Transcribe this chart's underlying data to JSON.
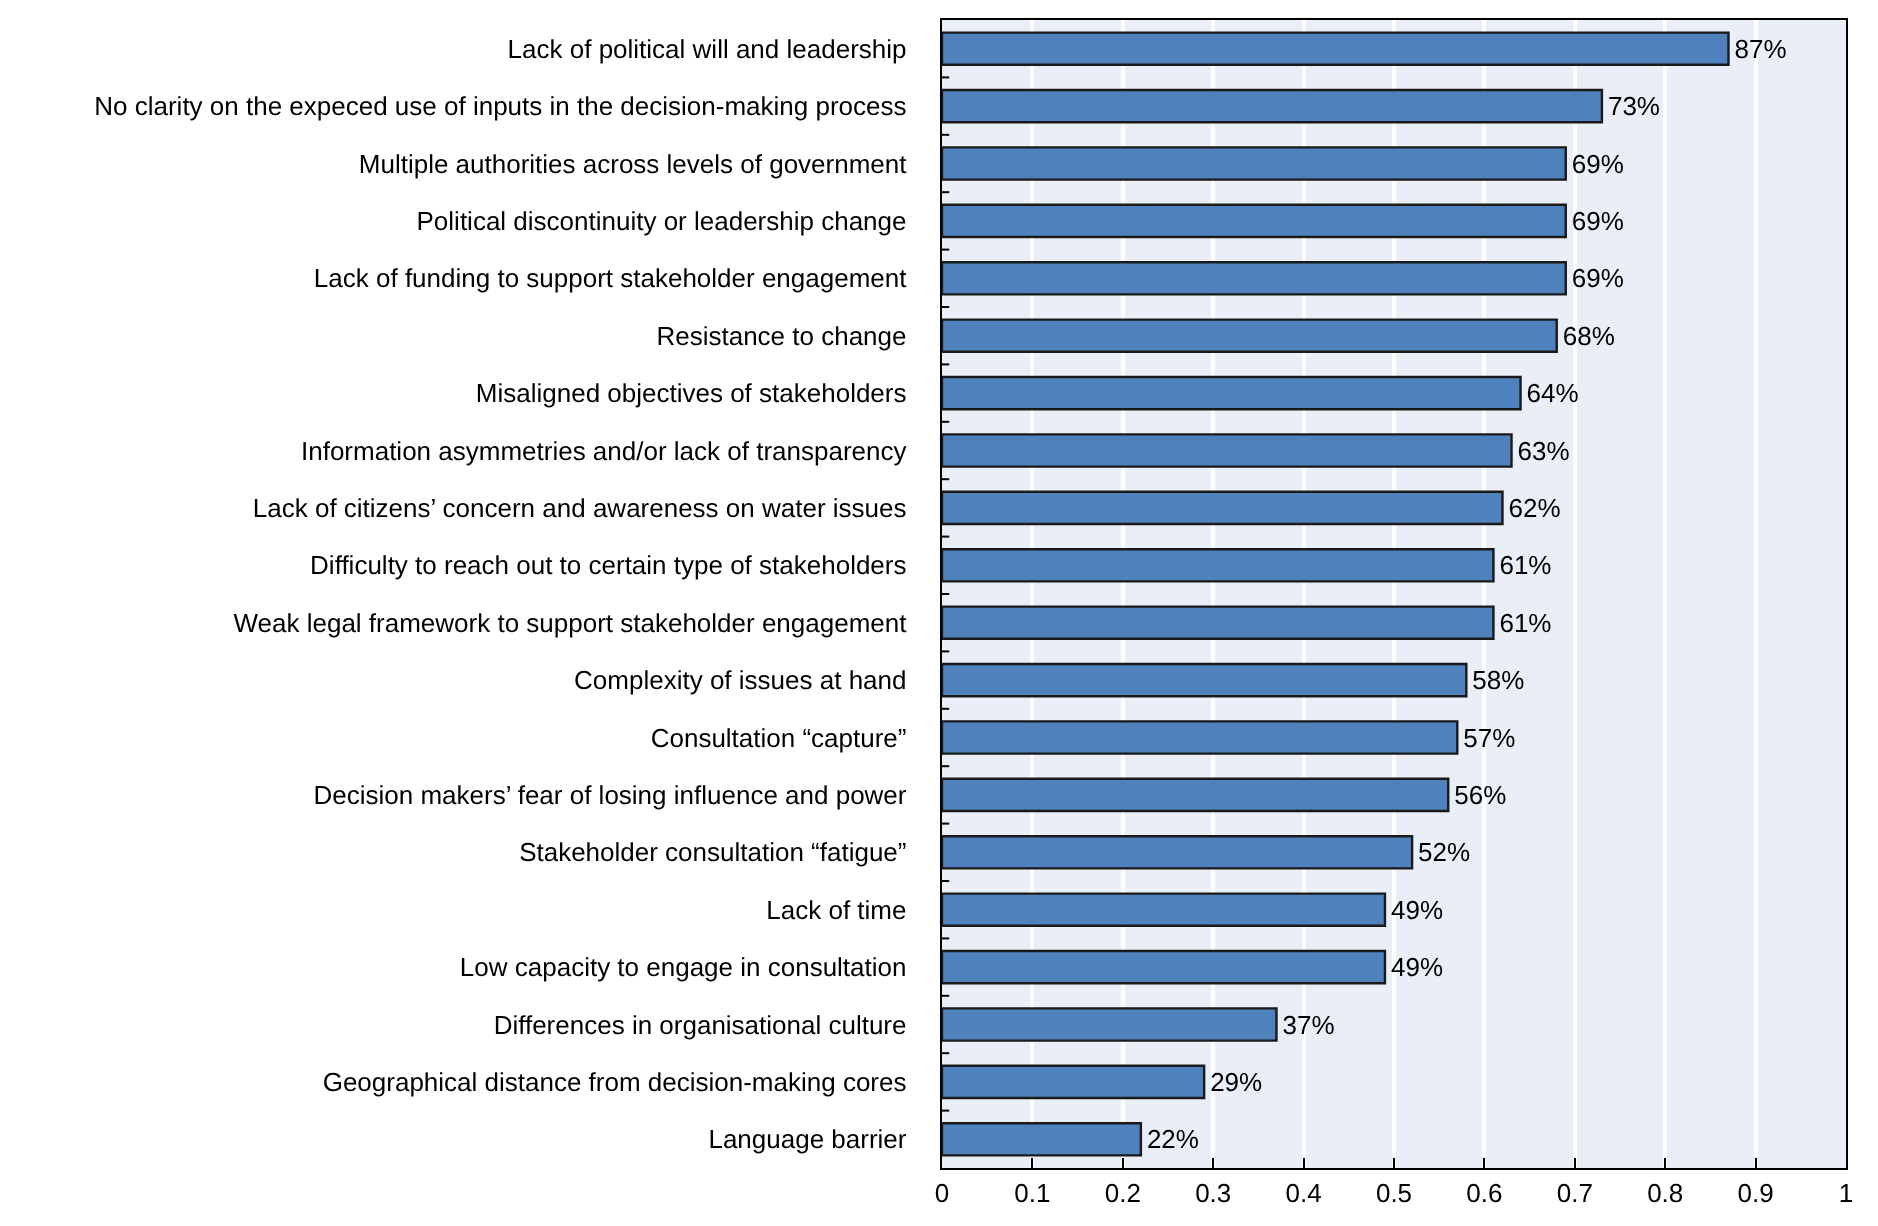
{
  "chart_data": {
    "type": "bar",
    "orientation": "horizontal",
    "categories": [
      "Lack of political will and leadership",
      "No clarity on the expeced use of inputs in the decision-making process",
      "Multiple authorities across levels of government",
      "Political discontinuity or leadership change",
      "Lack of funding to support stakeholder engagement",
      "Resistance to change",
      "Misaligned objectives of stakeholders",
      "Information asymmetries and/or lack of transparency",
      "Lack of citizens’ concern and awareness on water issues",
      "Difficulty to reach out to certain type of stakeholders",
      "Weak legal framework to support stakeholder engagement",
      "Complexity of issues at hand",
      "Consultation “capture”",
      "Decision makers’ fear of losing influence and power",
      "Stakeholder consultation “fatigue”",
      "Lack of time",
      "Low capacity to engage in consultation",
      "Differences in organisational culture",
      "Geographical distance from decision-making cores",
      "Language barrier"
    ],
    "values": [
      0.87,
      0.73,
      0.69,
      0.69,
      0.69,
      0.68,
      0.64,
      0.63,
      0.62,
      0.61,
      0.61,
      0.58,
      0.57,
      0.56,
      0.52,
      0.49,
      0.49,
      0.37,
      0.29,
      0.22
    ],
    "value_labels": [
      "87%",
      "73%",
      "69%",
      "69%",
      "69%",
      "68%",
      "64%",
      "63%",
      "62%",
      "61%",
      "61%",
      "58%",
      "57%",
      "56%",
      "52%",
      "49%",
      "49%",
      "37%",
      "29%",
      "22%"
    ],
    "color": "#4f81bd",
    "xlim": [
      0,
      1
    ],
    "xticks": [
      0,
      0.1,
      0.2,
      0.3,
      0.4,
      0.5,
      0.6,
      0.7,
      0.8,
      0.9,
      1
    ],
    "grid": "x"
  }
}
